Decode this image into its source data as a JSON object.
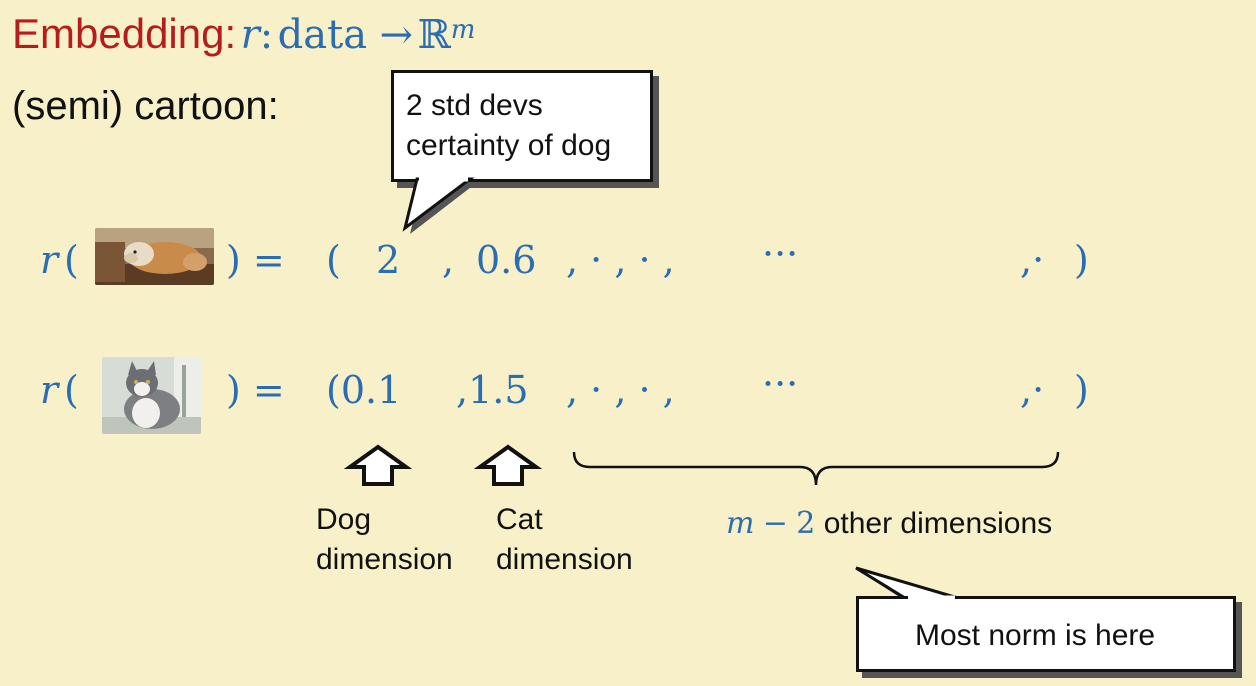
{
  "title": {
    "word": "Embedding:",
    "r": "r",
    "colon": ":",
    "data": "data",
    "arrow": "→",
    "space": "ℝ",
    "sup": "m"
  },
  "subtitle": "(semi) cartoon:",
  "callout_top": {
    "line1": "2 std devs",
    "line2": "certainty of dog"
  },
  "dog_row": {
    "prefix_r": "r",
    "open_paren": "(",
    "close_eq": ") =",
    "vec_open": "(",
    "v1": "2",
    "comma1": ",",
    "v2": "0.6",
    "dots": ", · , · ,",
    "ellipsis": "···",
    "last": ",·",
    "vec_close": ")"
  },
  "cat_row": {
    "prefix_r": "r",
    "open_paren": "(",
    "close_eq": ") =",
    "v1": "(0.1",
    "v2": ",1.5",
    "dots": ", · , · ,",
    "ellipsis": "···",
    "last": ",·",
    "vec_close": ")"
  },
  "labels": {
    "dog_dim_1": "Dog",
    "dog_dim_2": "dimension",
    "cat_dim_1": "Cat",
    "cat_dim_2": "dimension",
    "other_m": "m",
    "other_minus": "−",
    "other_two": "2",
    "other_rest": "other dimensions"
  },
  "callout_bottom": "Most norm is here",
  "colors": {
    "background": "#f8f0c9",
    "title_red": "#b71c1c",
    "math_blue": "#2a6db3"
  }
}
